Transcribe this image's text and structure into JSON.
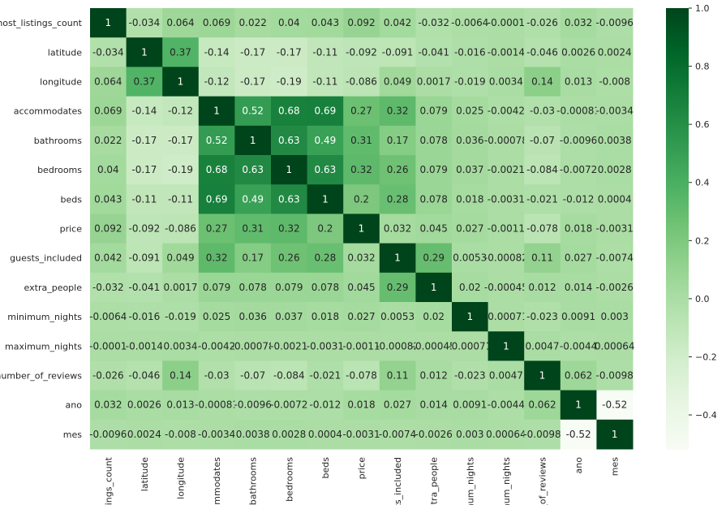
{
  "chart_data": {
    "type": "heatmap",
    "variables": [
      "host_listings_count",
      "latitude",
      "longitude",
      "accommodates",
      "bathrooms",
      "bedrooms",
      "beds",
      "price",
      "guests_included",
      "extra_people",
      "minimum_nights",
      "maximum_nights",
      "number_of_reviews",
      "ano",
      "mes"
    ],
    "x_tick_labels": [
      "listings_count",
      "latitude",
      "longitude",
      "ommodates",
      "bathrooms",
      "bedrooms",
      "beds",
      "price",
      "ts_included",
      "xtra_people",
      "num_nights",
      "num_nights",
      "_of_reviews",
      "ano",
      "mes"
    ],
    "values": [
      [
        1,
        -0.034,
        0.064,
        0.069,
        0.022,
        0.04,
        0.043,
        0.092,
        0.042,
        -0.032,
        -0.0064,
        -0.0001,
        -0.026,
        0.032,
        -0.0096
      ],
      [
        -0.034,
        1,
        0.37,
        -0.14,
        -0.17,
        -0.17,
        -0.11,
        -0.092,
        -0.091,
        -0.041,
        -0.016,
        -0.0014,
        -0.046,
        0.0026,
        0.0024
      ],
      [
        0.064,
        0.37,
        1,
        -0.12,
        -0.17,
        -0.19,
        -0.11,
        -0.086,
        0.049,
        0.0017,
        -0.019,
        0.0034,
        0.14,
        0.013,
        -0.008
      ],
      [
        0.069,
        -0.14,
        -0.12,
        1,
        0.52,
        0.68,
        0.69,
        0.27,
        0.32,
        0.079,
        0.025,
        -0.0042,
        -0.03,
        -0.00081,
        -0.0034
      ],
      [
        0.022,
        -0.17,
        -0.17,
        0.52,
        1,
        0.63,
        0.49,
        0.31,
        0.17,
        0.078,
        0.036,
        -0.00078,
        -0.07,
        -0.0096,
        0.0038
      ],
      [
        0.04,
        -0.17,
        -0.19,
        0.68,
        0.63,
        1,
        0.63,
        0.32,
        0.26,
        0.079,
        0.037,
        -0.0021,
        -0.084,
        -0.0072,
        0.0028
      ],
      [
        0.043,
        -0.11,
        -0.11,
        0.69,
        0.49,
        0.63,
        1,
        0.2,
        0.28,
        0.078,
        0.018,
        -0.0031,
        -0.021,
        -0.012,
        0.0004
      ],
      [
        0.092,
        -0.092,
        -0.086,
        0.27,
        0.31,
        0.32,
        0.2,
        1,
        0.032,
        0.045,
        0.027,
        -0.0011,
        -0.078,
        0.018,
        -0.0031
      ],
      [
        0.042,
        -0.091,
        0.049,
        0.32,
        0.17,
        0.26,
        0.28,
        0.032,
        1,
        0.29,
        0.0053,
        -0.00082,
        0.11,
        0.027,
        -0.0074
      ],
      [
        -0.032,
        -0.041,
        0.0017,
        0.079,
        0.078,
        0.079,
        0.078,
        0.045,
        0.29,
        1,
        0.02,
        -0.00045,
        0.012,
        0.014,
        -0.0026
      ],
      [
        -0.0064,
        -0.016,
        -0.019,
        0.025,
        0.036,
        0.037,
        0.018,
        0.027,
        0.0053,
        0.02,
        1,
        -0.00071,
        -0.023,
        0.0091,
        0.003
      ],
      [
        -0.0001,
        -0.0014,
        0.0034,
        -0.0042,
        -0.00078,
        -0.0021,
        -0.0031,
        -0.0011,
        -0.00082,
        -0.00045,
        -0.00071,
        1,
        0.0047,
        -0.0044,
        0.00064
      ],
      [
        -0.026,
        -0.046,
        0.14,
        -0.03,
        -0.07,
        -0.084,
        -0.021,
        -0.078,
        0.11,
        0.012,
        -0.023,
        0.0047,
        1,
        0.062,
        -0.0098
      ],
      [
        0.032,
        0.0026,
        0.013,
        -0.00081,
        -0.0096,
        -0.0072,
        -0.012,
        0.018,
        0.027,
        0.014,
        0.0091,
        -0.0044,
        0.062,
        1,
        -0.52
      ],
      [
        -0.0096,
        0.0024,
        -0.008,
        -0.0034,
        0.0038,
        0.0028,
        0.0004,
        -0.0031,
        -0.0074,
        -0.0026,
        0.003,
        0.00064,
        -0.0098,
        -0.52,
        1
      ]
    ],
    "colorbar": {
      "colormap": "Greens",
      "vmin": -0.52,
      "vmax": 1,
      "ticks": [
        "1.0",
        "0.8",
        "0.6",
        "0.4",
        "0.2",
        "0.0",
        "−0.2",
        "−0.4"
      ],
      "tick_values": [
        1.0,
        0.8,
        0.6,
        0.4,
        0.2,
        0.0,
        -0.2,
        -0.4
      ]
    }
  }
}
